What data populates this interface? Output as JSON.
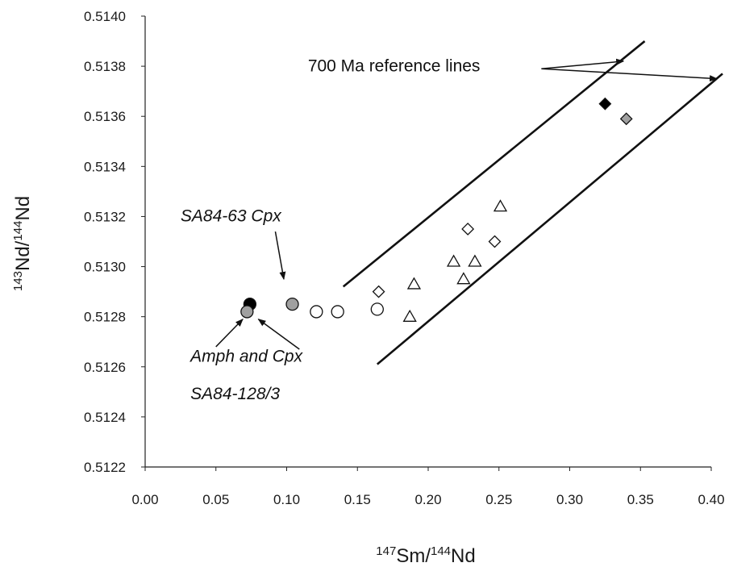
{
  "chart_data": {
    "type": "scatter",
    "xlabel_main": "Sm/",
    "xlabel_sup1": "147",
    "xlabel_sup2": "144",
    "xlabel_tail": "Nd",
    "ylabel_main": "Nd/",
    "ylabel_sup1": "143",
    "ylabel_sup2": "144",
    "ylabel_tail": "Nd",
    "xlim": [
      0,
      0.4
    ],
    "ylim": [
      0.5122,
      0.514
    ],
    "x_ticks": [
      "0.00",
      "0.05",
      "0.10",
      "0.15",
      "0.20",
      "0.25",
      "0.30",
      "0.35",
      "0.40"
    ],
    "y_ticks": [
      "0.5122",
      "0.5124",
      "0.5126",
      "0.5128",
      "0.5130",
      "0.5132",
      "0.5134",
      "0.5136",
      "0.5138",
      "0.5140"
    ],
    "grid": false,
    "series": [
      {
        "marker": "circle",
        "fill": "#000000",
        "points": [
          [
            0.074,
            0.51285
          ]
        ]
      },
      {
        "marker": "circle",
        "fill": "#a0a0a0",
        "points": [
          [
            0.072,
            0.51282
          ],
          [
            0.104,
            0.51285
          ]
        ]
      },
      {
        "marker": "circle",
        "fill": "#ffffff",
        "points": [
          [
            0.121,
            0.51282
          ],
          [
            0.136,
            0.51282
          ],
          [
            0.164,
            0.51283
          ]
        ]
      },
      {
        "marker": "diamond",
        "fill": "#ffffff",
        "points": [
          [
            0.165,
            0.5129
          ],
          [
            0.228,
            0.51315
          ],
          [
            0.247,
            0.5131
          ]
        ]
      },
      {
        "marker": "triangle",
        "fill": "#ffffff",
        "points": [
          [
            0.187,
            0.5128
          ],
          [
            0.19,
            0.51293
          ],
          [
            0.218,
            0.51302
          ],
          [
            0.225,
            0.51295
          ],
          [
            0.233,
            0.51302
          ],
          [
            0.251,
            0.51324
          ]
        ]
      },
      {
        "marker": "diamond",
        "fill": "#000000",
        "points": [
          [
            0.325,
            0.51365
          ]
        ]
      },
      {
        "marker": "diamond",
        "fill": "#a0a0a0",
        "points": [
          [
            0.34,
            0.51359
          ]
        ]
      }
    ],
    "reference_lines": [
      {
        "from": [
          0.14,
          0.51292
        ],
        "to": [
          0.353,
          0.5139
        ]
      },
      {
        "from": [
          0.164,
          0.51261
        ],
        "to": [
          0.408,
          0.51377
        ]
      }
    ],
    "annotations": [
      {
        "text": "700 Ma reference lines",
        "x": 0.115,
        "y": 0.51378,
        "italic": false,
        "arrows": [
          {
            "from": [
              0.28,
              0.51379
            ],
            "to": [
              0.338,
              0.51382
            ]
          },
          {
            "from": [
              0.28,
              0.51379
            ],
            "to": [
              0.404,
              0.51375
            ]
          }
        ]
      },
      {
        "text": "SA84-63 Cpx",
        "x": 0.025,
        "y": 0.51318,
        "italic": true,
        "arrows": [
          {
            "from": [
              0.092,
              0.51314
            ],
            "to": [
              0.098,
              0.51295
            ]
          }
        ]
      },
      {
        "text": "Amph and Cpx",
        "x": 0.032,
        "y": 0.51262,
        "italic": true,
        "arrows": [
          {
            "from": [
              0.05,
              0.51268
            ],
            "to": [
              0.069,
              0.51279
            ]
          },
          {
            "from": [
              0.109,
              0.51267
            ],
            "to": [
              0.08,
              0.51279
            ]
          }
        ]
      },
      {
        "text": "SA84-128/3",
        "x": 0.032,
        "y": 0.51247,
        "italic": true,
        "arrows": []
      }
    ]
  }
}
